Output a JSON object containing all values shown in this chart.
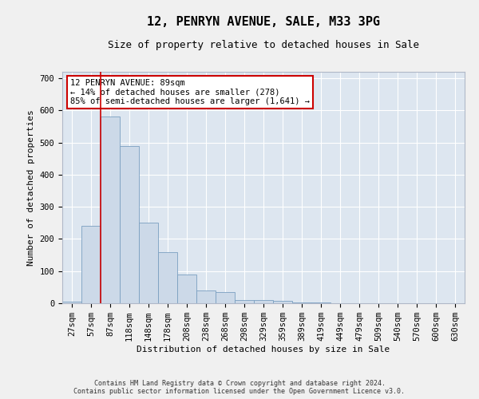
{
  "title": "12, PENRYN AVENUE, SALE, M33 3PG",
  "subtitle": "Size of property relative to detached houses in Sale",
  "xlabel": "Distribution of detached houses by size in Sale",
  "ylabel": "Number of detached properties",
  "bin_labels": [
    "27sqm",
    "57sqm",
    "87sqm",
    "118sqm",
    "148sqm",
    "178sqm",
    "208sqm",
    "238sqm",
    "268sqm",
    "298sqm",
    "329sqm",
    "359sqm",
    "389sqm",
    "419sqm",
    "449sqm",
    "479sqm",
    "509sqm",
    "540sqm",
    "570sqm",
    "600sqm",
    "630sqm"
  ],
  "bar_heights": [
    5,
    240,
    580,
    490,
    250,
    160,
    90,
    40,
    35,
    10,
    10,
    8,
    3,
    3,
    0,
    0,
    0,
    0,
    0,
    0,
    0
  ],
  "bar_color": "#ccd9e8",
  "bar_edge_color": "#7a9fc0",
  "property_size_bin": 2,
  "annotation_text": "12 PENRYN AVENUE: 89sqm\n← 14% of detached houses are smaller (278)\n85% of semi-detached houses are larger (1,641) →",
  "annotation_box_color": "#ffffff",
  "annotation_box_edge": "#cc0000",
  "ylim": [
    0,
    720
  ],
  "yticks": [
    0,
    100,
    200,
    300,
    400,
    500,
    600,
    700
  ],
  "background_color": "#dde6f0",
  "plot_bg_color": "#dde6f0",
  "footer_text": "Contains HM Land Registry data © Crown copyright and database right 2024.\nContains public sector information licensed under the Open Government Licence v3.0.",
  "title_fontsize": 11,
  "subtitle_fontsize": 9,
  "axis_label_fontsize": 8,
  "tick_fontsize": 7.5,
  "footer_fontsize": 6
}
